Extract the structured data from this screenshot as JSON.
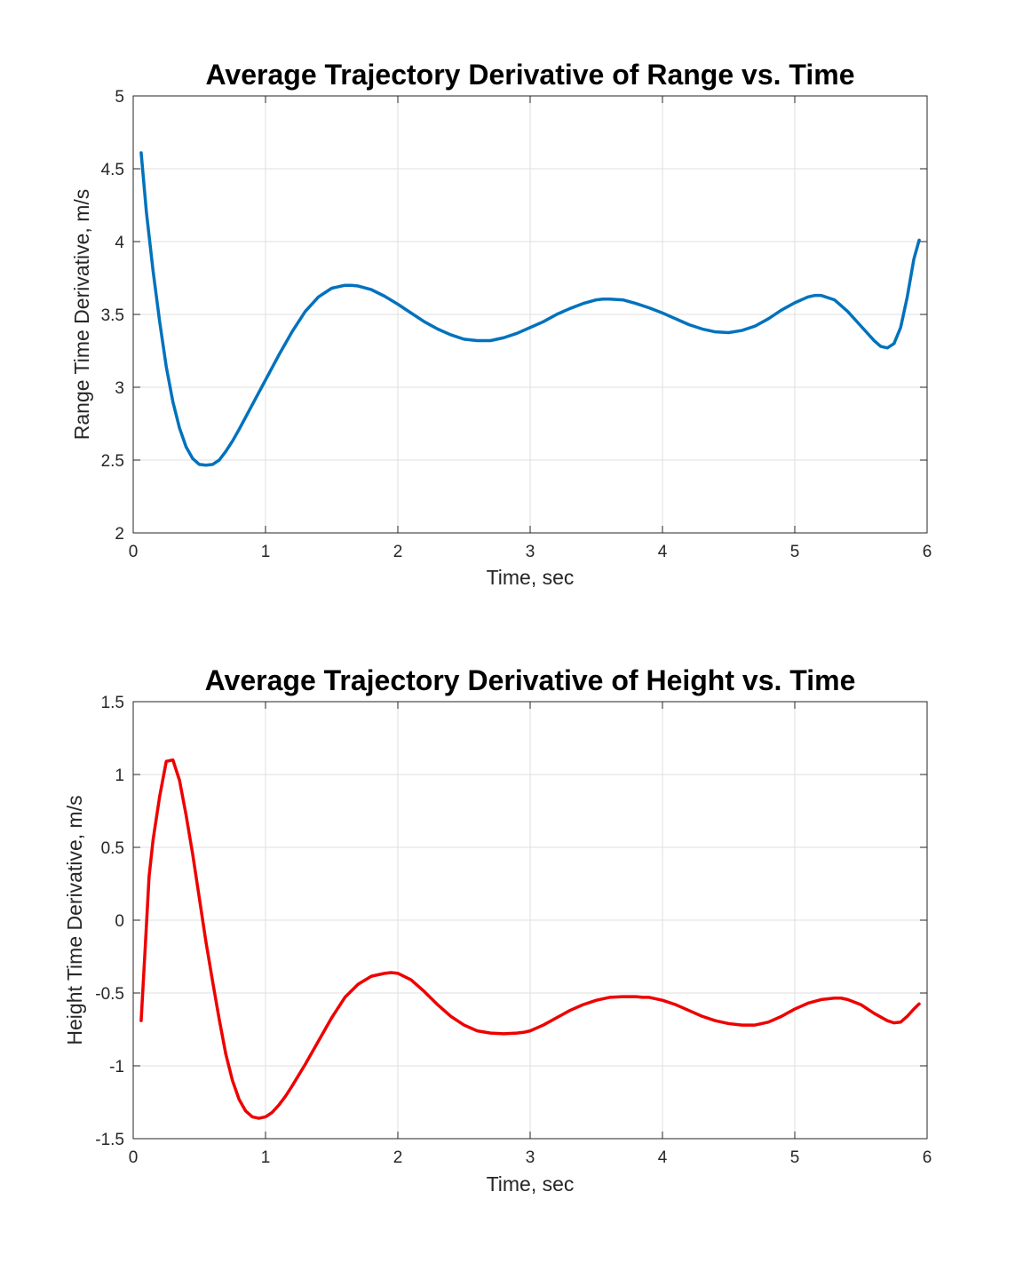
{
  "chart_data": [
    {
      "type": "line",
      "title": "Average Trajectory Derivative of Range vs. Time",
      "xlabel": "Time, sec",
      "ylabel": "Range Time Derivative, m/s",
      "xlim": [
        0,
        6
      ],
      "ylim": [
        2,
        5
      ],
      "xticks": [
        0,
        1,
        2,
        3,
        4,
        5,
        6
      ],
      "yticks": [
        2,
        2.5,
        3,
        3.5,
        4,
        4.5,
        5
      ],
      "xtick_labels": [
        "0",
        "1",
        "2",
        "3",
        "4",
        "5",
        "6"
      ],
      "ytick_labels": [
        "2",
        "2.5",
        "3",
        "3.5",
        "4",
        "4.5",
        "5"
      ],
      "grid": true,
      "series": [
        {
          "name": "Range Time Derivative",
          "color": "#0072BD",
          "x": [
            0.06,
            0.1,
            0.15,
            0.2,
            0.25,
            0.3,
            0.35,
            0.4,
            0.45,
            0.5,
            0.55,
            0.6,
            0.65,
            0.7,
            0.75,
            0.8,
            0.9,
            1.0,
            1.1,
            1.2,
            1.3,
            1.4,
            1.5,
            1.6,
            1.65,
            1.7,
            1.8,
            1.9,
            2.0,
            2.1,
            2.2,
            2.3,
            2.4,
            2.5,
            2.6,
            2.7,
            2.8,
            2.9,
            3.0,
            3.1,
            3.2,
            3.3,
            3.4,
            3.5,
            3.55,
            3.6,
            3.7,
            3.8,
            3.9,
            4.0,
            4.1,
            4.2,
            4.3,
            4.4,
            4.5,
            4.6,
            4.7,
            4.8,
            4.9,
            5.0,
            5.1,
            5.15,
            5.2,
            5.3,
            5.4,
            5.5,
            5.6,
            5.65,
            5.7,
            5.75,
            5.8,
            5.85,
            5.9,
            5.94
          ],
          "values": [
            4.61,
            4.2,
            3.8,
            3.45,
            3.14,
            2.9,
            2.72,
            2.59,
            2.51,
            2.47,
            2.465,
            2.47,
            2.5,
            2.56,
            2.63,
            2.71,
            2.88,
            3.05,
            3.22,
            3.38,
            3.52,
            3.62,
            3.68,
            3.7,
            3.7,
            3.695,
            3.67,
            3.625,
            3.57,
            3.51,
            3.45,
            3.4,
            3.36,
            3.33,
            3.32,
            3.32,
            3.34,
            3.37,
            3.41,
            3.45,
            3.5,
            3.54,
            3.575,
            3.6,
            3.605,
            3.605,
            3.6,
            3.575,
            3.545,
            3.51,
            3.47,
            3.43,
            3.4,
            3.38,
            3.375,
            3.39,
            3.42,
            3.47,
            3.53,
            3.58,
            3.62,
            3.63,
            3.63,
            3.6,
            3.52,
            3.42,
            3.32,
            3.28,
            3.27,
            3.3,
            3.41,
            3.62,
            3.88,
            4.01
          ]
        }
      ]
    },
    {
      "type": "line",
      "title": "Average Trajectory Derivative of Height vs. Time",
      "xlabel": "Time, sec",
      "ylabel": "Height Time Derivative, m/s",
      "xlim": [
        0,
        6
      ],
      "ylim": [
        -1.5,
        1.5
      ],
      "xticks": [
        0,
        1,
        2,
        3,
        4,
        5,
        6
      ],
      "yticks": [
        -1.5,
        -1,
        -0.5,
        0,
        0.5,
        1,
        1.5
      ],
      "xtick_labels": [
        "0",
        "1",
        "2",
        "3",
        "4",
        "5",
        "6"
      ],
      "ytick_labels": [
        "-1.5",
        "-1",
        "-0.5",
        "0",
        "0.5",
        "1",
        "1.5"
      ],
      "grid": true,
      "series": [
        {
          "name": "Height Time Derivative",
          "color": "#EE0000",
          "x": [
            0.06,
            0.09,
            0.12,
            0.15,
            0.2,
            0.25,
            0.3,
            0.35,
            0.4,
            0.45,
            0.5,
            0.55,
            0.6,
            0.65,
            0.7,
            0.75,
            0.8,
            0.85,
            0.9,
            0.95,
            1.0,
            1.05,
            1.1,
            1.15,
            1.2,
            1.3,
            1.4,
            1.5,
            1.6,
            1.7,
            1.8,
            1.9,
            1.95,
            2.0,
            2.1,
            2.2,
            2.3,
            2.4,
            2.5,
            2.6,
            2.7,
            2.8,
            2.9,
            2.95,
            3.0,
            3.1,
            3.2,
            3.3,
            3.4,
            3.5,
            3.6,
            3.7,
            3.8,
            3.85,
            3.9,
            4.0,
            4.1,
            4.2,
            4.3,
            4.4,
            4.5,
            4.6,
            4.7,
            4.8,
            4.9,
            5.0,
            5.1,
            5.2,
            5.3,
            5.35,
            5.4,
            5.5,
            5.6,
            5.7,
            5.75,
            5.8,
            5.85,
            5.9,
            5.94
          ],
          "values": [
            -0.69,
            -0.2,
            0.3,
            0.55,
            0.85,
            1.09,
            1.1,
            0.96,
            0.72,
            0.45,
            0.15,
            -0.15,
            -0.42,
            -0.68,
            -0.92,
            -1.1,
            -1.23,
            -1.31,
            -1.35,
            -1.36,
            -1.35,
            -1.32,
            -1.27,
            -1.21,
            -1.14,
            -0.99,
            -0.83,
            -0.67,
            -0.53,
            -0.44,
            -0.385,
            -0.365,
            -0.36,
            -0.365,
            -0.41,
            -0.49,
            -0.58,
            -0.66,
            -0.72,
            -0.76,
            -0.775,
            -0.78,
            -0.775,
            -0.77,
            -0.76,
            -0.72,
            -0.67,
            -0.62,
            -0.58,
            -0.55,
            -0.53,
            -0.525,
            -0.525,
            -0.53,
            -0.53,
            -0.55,
            -0.58,
            -0.62,
            -0.66,
            -0.69,
            -0.71,
            -0.72,
            -0.72,
            -0.7,
            -0.66,
            -0.61,
            -0.57,
            -0.545,
            -0.535,
            -0.535,
            -0.545,
            -0.58,
            -0.64,
            -0.69,
            -0.705,
            -0.7,
            -0.66,
            -0.61,
            -0.575
          ]
        }
      ]
    }
  ]
}
